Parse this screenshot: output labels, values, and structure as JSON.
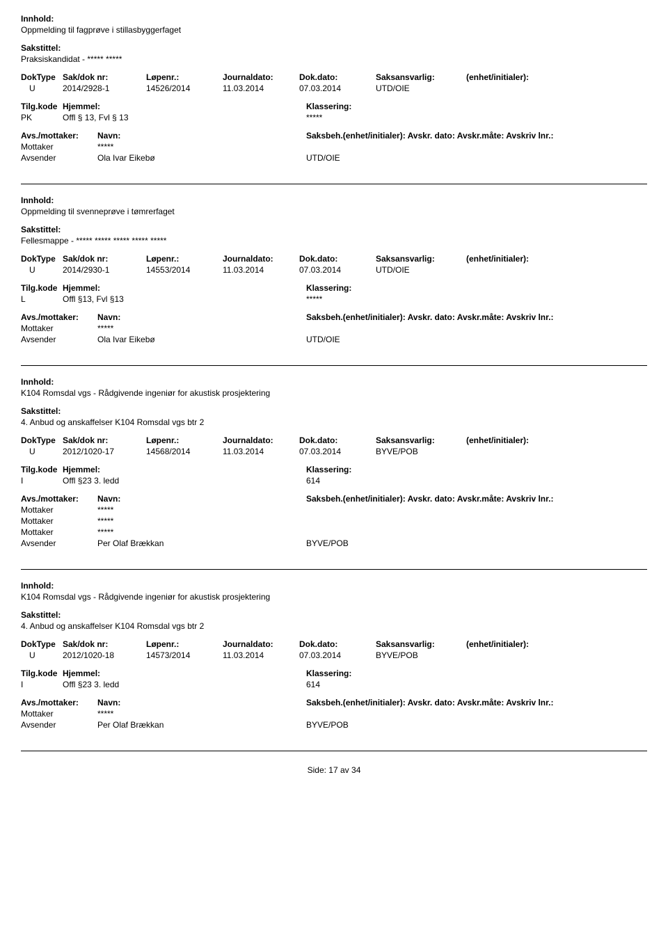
{
  "labels": {
    "innhold": "Innhold:",
    "sakstittel": "Sakstittel:",
    "doktype": "DokType",
    "sakdok": "Sak/dok nr:",
    "lopenr": "Løpenr.:",
    "journaldato": "Journaldato:",
    "dokdato": "Dok.dato:",
    "saksansvarlig": "Saksansvarlig:",
    "enhet": "(enhet/initialer):",
    "tilgkode": "Tilg.kode",
    "hjemmel": "Hjemmel:",
    "klassering": "Klassering:",
    "avsmottaker": "Avs./mottaker:",
    "navn": "Navn:",
    "saksbeh": "Saksbeh.(enhet/initialer): Avskr. dato:  Avskr.måte: Avskriv lnr.:",
    "mottaker": "Mottaker",
    "avsender": "Avsender",
    "side": "Side:",
    "av": "av"
  },
  "records": [
    {
      "innhold": "Oppmelding til fagprøve i stillasbyggerfaget",
      "sakstittel": "Praksiskandidat - ***** *****",
      "doktype": "U",
      "sakdok": "2014/2928-1",
      "lopenr": "14526/2014",
      "journaldato": "11.03.2014",
      "dokdato": "07.03.2014",
      "saksansvarlig": "UTD/OIE",
      "tilgkode": "PK",
      "hjemmel": "Offl § 13, Fvl § 13",
      "klassering": "*****",
      "parties": [
        {
          "role": "Mottaker",
          "name": "*****",
          "unit": ""
        },
        {
          "role": "Avsender",
          "name": "Ola Ivar Eikebø",
          "unit": "UTD/OIE"
        }
      ]
    },
    {
      "innhold": "Oppmelding til svenneprøve i tømrerfaget",
      "sakstittel": "Fellesmappe - ***** ***** ***** ***** *****",
      "doktype": "U",
      "sakdok": "2014/2930-1",
      "lopenr": "14553/2014",
      "journaldato": "11.03.2014",
      "dokdato": "07.03.2014",
      "saksansvarlig": "UTD/OIE",
      "tilgkode": "L",
      "hjemmel": "Offl §13, Fvl §13",
      "klassering": "*****",
      "parties": [
        {
          "role": "Mottaker",
          "name": "*****",
          "unit": ""
        },
        {
          "role": "Avsender",
          "name": "Ola Ivar Eikebø",
          "unit": "UTD/OIE"
        }
      ]
    },
    {
      "innhold": "K104 Romsdal vgs - Rådgivende ingeniør for akustisk prosjektering",
      "sakstittel": "4. Anbud og anskaffelser K104 Romsdal vgs btr 2",
      "doktype": "U",
      "sakdok": "2012/1020-17",
      "lopenr": "14568/2014",
      "journaldato": "11.03.2014",
      "dokdato": "07.03.2014",
      "saksansvarlig": "BYVE/POB",
      "tilgkode": "I",
      "hjemmel": "Offl §23 3. ledd",
      "klassering": "614",
      "parties": [
        {
          "role": "Mottaker",
          "name": "*****",
          "unit": ""
        },
        {
          "role": "Mottaker",
          "name": "*****",
          "unit": ""
        },
        {
          "role": "Mottaker",
          "name": "*****",
          "unit": ""
        },
        {
          "role": "Avsender",
          "name": "Per Olaf Brækkan",
          "unit": "BYVE/POB"
        }
      ]
    },
    {
      "innhold": "K104 Romsdal vgs - Rådgivende ingeniør for akustisk prosjektering",
      "sakstittel": "4. Anbud og anskaffelser K104 Romsdal vgs btr 2",
      "doktype": "U",
      "sakdok": "2012/1020-18",
      "lopenr": "14573/2014",
      "journaldato": "11.03.2014",
      "dokdato": "07.03.2014",
      "saksansvarlig": "BYVE/POB",
      "tilgkode": "I",
      "hjemmel": "Offl §23 3. ledd",
      "klassering": "614",
      "parties": [
        {
          "role": "Mottaker",
          "name": "*****",
          "unit": ""
        },
        {
          "role": "Avsender",
          "name": "Per Olaf Brækkan",
          "unit": "BYVE/POB"
        }
      ]
    }
  ],
  "page": {
    "current": "17",
    "total": "34"
  }
}
